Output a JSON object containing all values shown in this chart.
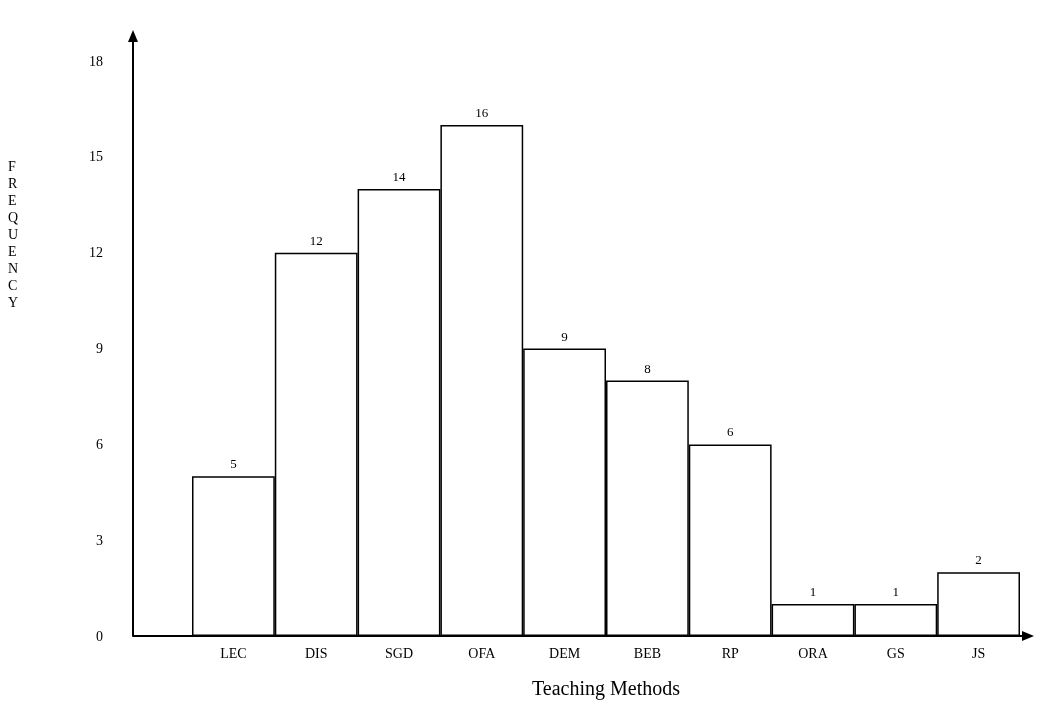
{
  "chart_data": {
    "type": "bar",
    "xlabel": "Teaching Methods",
    "ylabel": "FREQUENCY",
    "categories": [
      "LEC",
      "DIS",
      "SGD",
      "OFA",
      "DEM",
      "BEB",
      "RP",
      "ORA",
      "GS",
      "JS"
    ],
    "values": [
      5,
      12,
      14,
      16,
      9,
      8,
      6,
      1,
      1,
      2
    ],
    "color": "#ffffff",
    "ylim": [
      0,
      18.6
    ],
    "yticks": [
      0,
      3,
      6,
      9,
      12,
      15,
      18
    ],
    "grid": false,
    "data_labels": true
  }
}
